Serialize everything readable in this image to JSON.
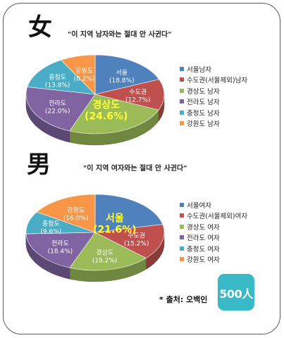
{
  "page": {
    "source": "* 출처: 오백인",
    "logo_text": "500人"
  },
  "chart_data": [
    {
      "type": "pie",
      "gender_label": "女",
      "title": "\"이 지역 남자와는 절대 안 사귄다\"",
      "categories": [
        "서울",
        "수도권",
        "경상도",
        "전라도",
        "충청도",
        "강원도"
      ],
      "values": [
        18.8,
        12.7,
        24.6,
        22.0,
        13.8,
        8.2
      ],
      "value_labels": [
        "(18.8%)",
        "(12.7%)",
        "(24.6%)",
        "(22.0%)",
        "(13.8%)",
        "(8.2%)"
      ],
      "legend": [
        "서울남자",
        "수도권(서울제외)남자",
        "경상도 남자",
        "전라도 남자",
        "충청도 남자",
        "강원도 남자"
      ],
      "highlight": "경상도",
      "colors": [
        "#4f81bd",
        "#c0504d",
        "#9bbb59",
        "#8064a2",
        "#4bacc6",
        "#f79646"
      ]
    },
    {
      "type": "pie",
      "gender_label": "男",
      "title": "\"이 지역 여자와는 절대 안 사귄다\"",
      "categories": [
        "서울",
        "수도권",
        "경상도",
        "전라도",
        "충청도",
        "강원도"
      ],
      "values": [
        21.6,
        15.2,
        19.2,
        18.4,
        9.6,
        16.0
      ],
      "value_labels": [
        "(21.6%)",
        "(15.2%)",
        "(19.2%)",
        "(18.4%)",
        "(9.6%)",
        "(16.0%)"
      ],
      "legend": [
        "서울여자",
        "수도권(서울제외)여자",
        "경상도 여자",
        "전라도 여자",
        "충청도 여자",
        "강원도 여자"
      ],
      "highlight": "서울",
      "colors": [
        "#4f81bd",
        "#c0504d",
        "#9bbb59",
        "#8064a2",
        "#4bacc6",
        "#f79646"
      ]
    }
  ]
}
